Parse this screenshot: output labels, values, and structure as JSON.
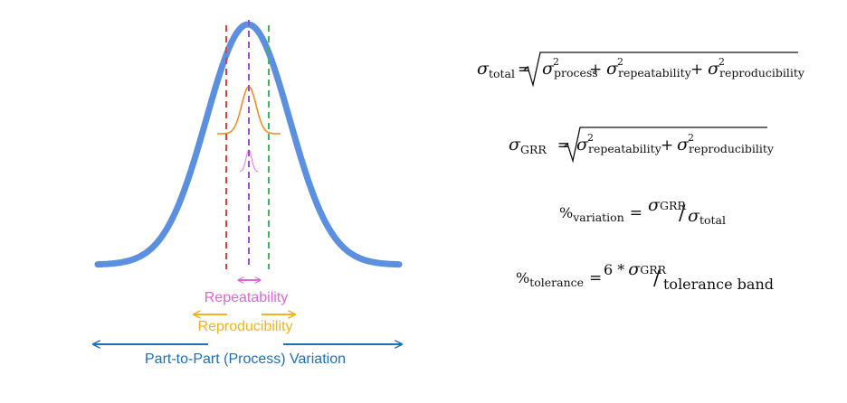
{
  "colors": {
    "background": "#ffffff",
    "process": "#5b8fe0",
    "repeatability": "#dd66d6",
    "reproducibility": "#f3b21f",
    "part_to_part": "#1f6fb8",
    "repro_inner": "#f08f22",
    "line_red": "#d94545",
    "line_purple": "#9a4fc9",
    "line_green": "#46b25a"
  },
  "labels": {
    "repeatability": "Repeatability",
    "reproducibility": "Reproducibility",
    "part_to_part": "Part-to-Part (Process) Variation"
  },
  "formulas": {
    "sigma": "σ",
    "total_sub": "total",
    "process_sub": "process",
    "repeatability_sub": "repeatability",
    "reproducibility_sub": "reproducibility",
    "grr_sub": "GRR",
    "squared": "2",
    "equals": "=",
    "plus": "+",
    "slash": "/",
    "percent": "%",
    "variation_sub": "variation",
    "tolerance_sub": "tolerance",
    "six_times": "6 *",
    "tolerance_band": "tolerance band"
  }
}
